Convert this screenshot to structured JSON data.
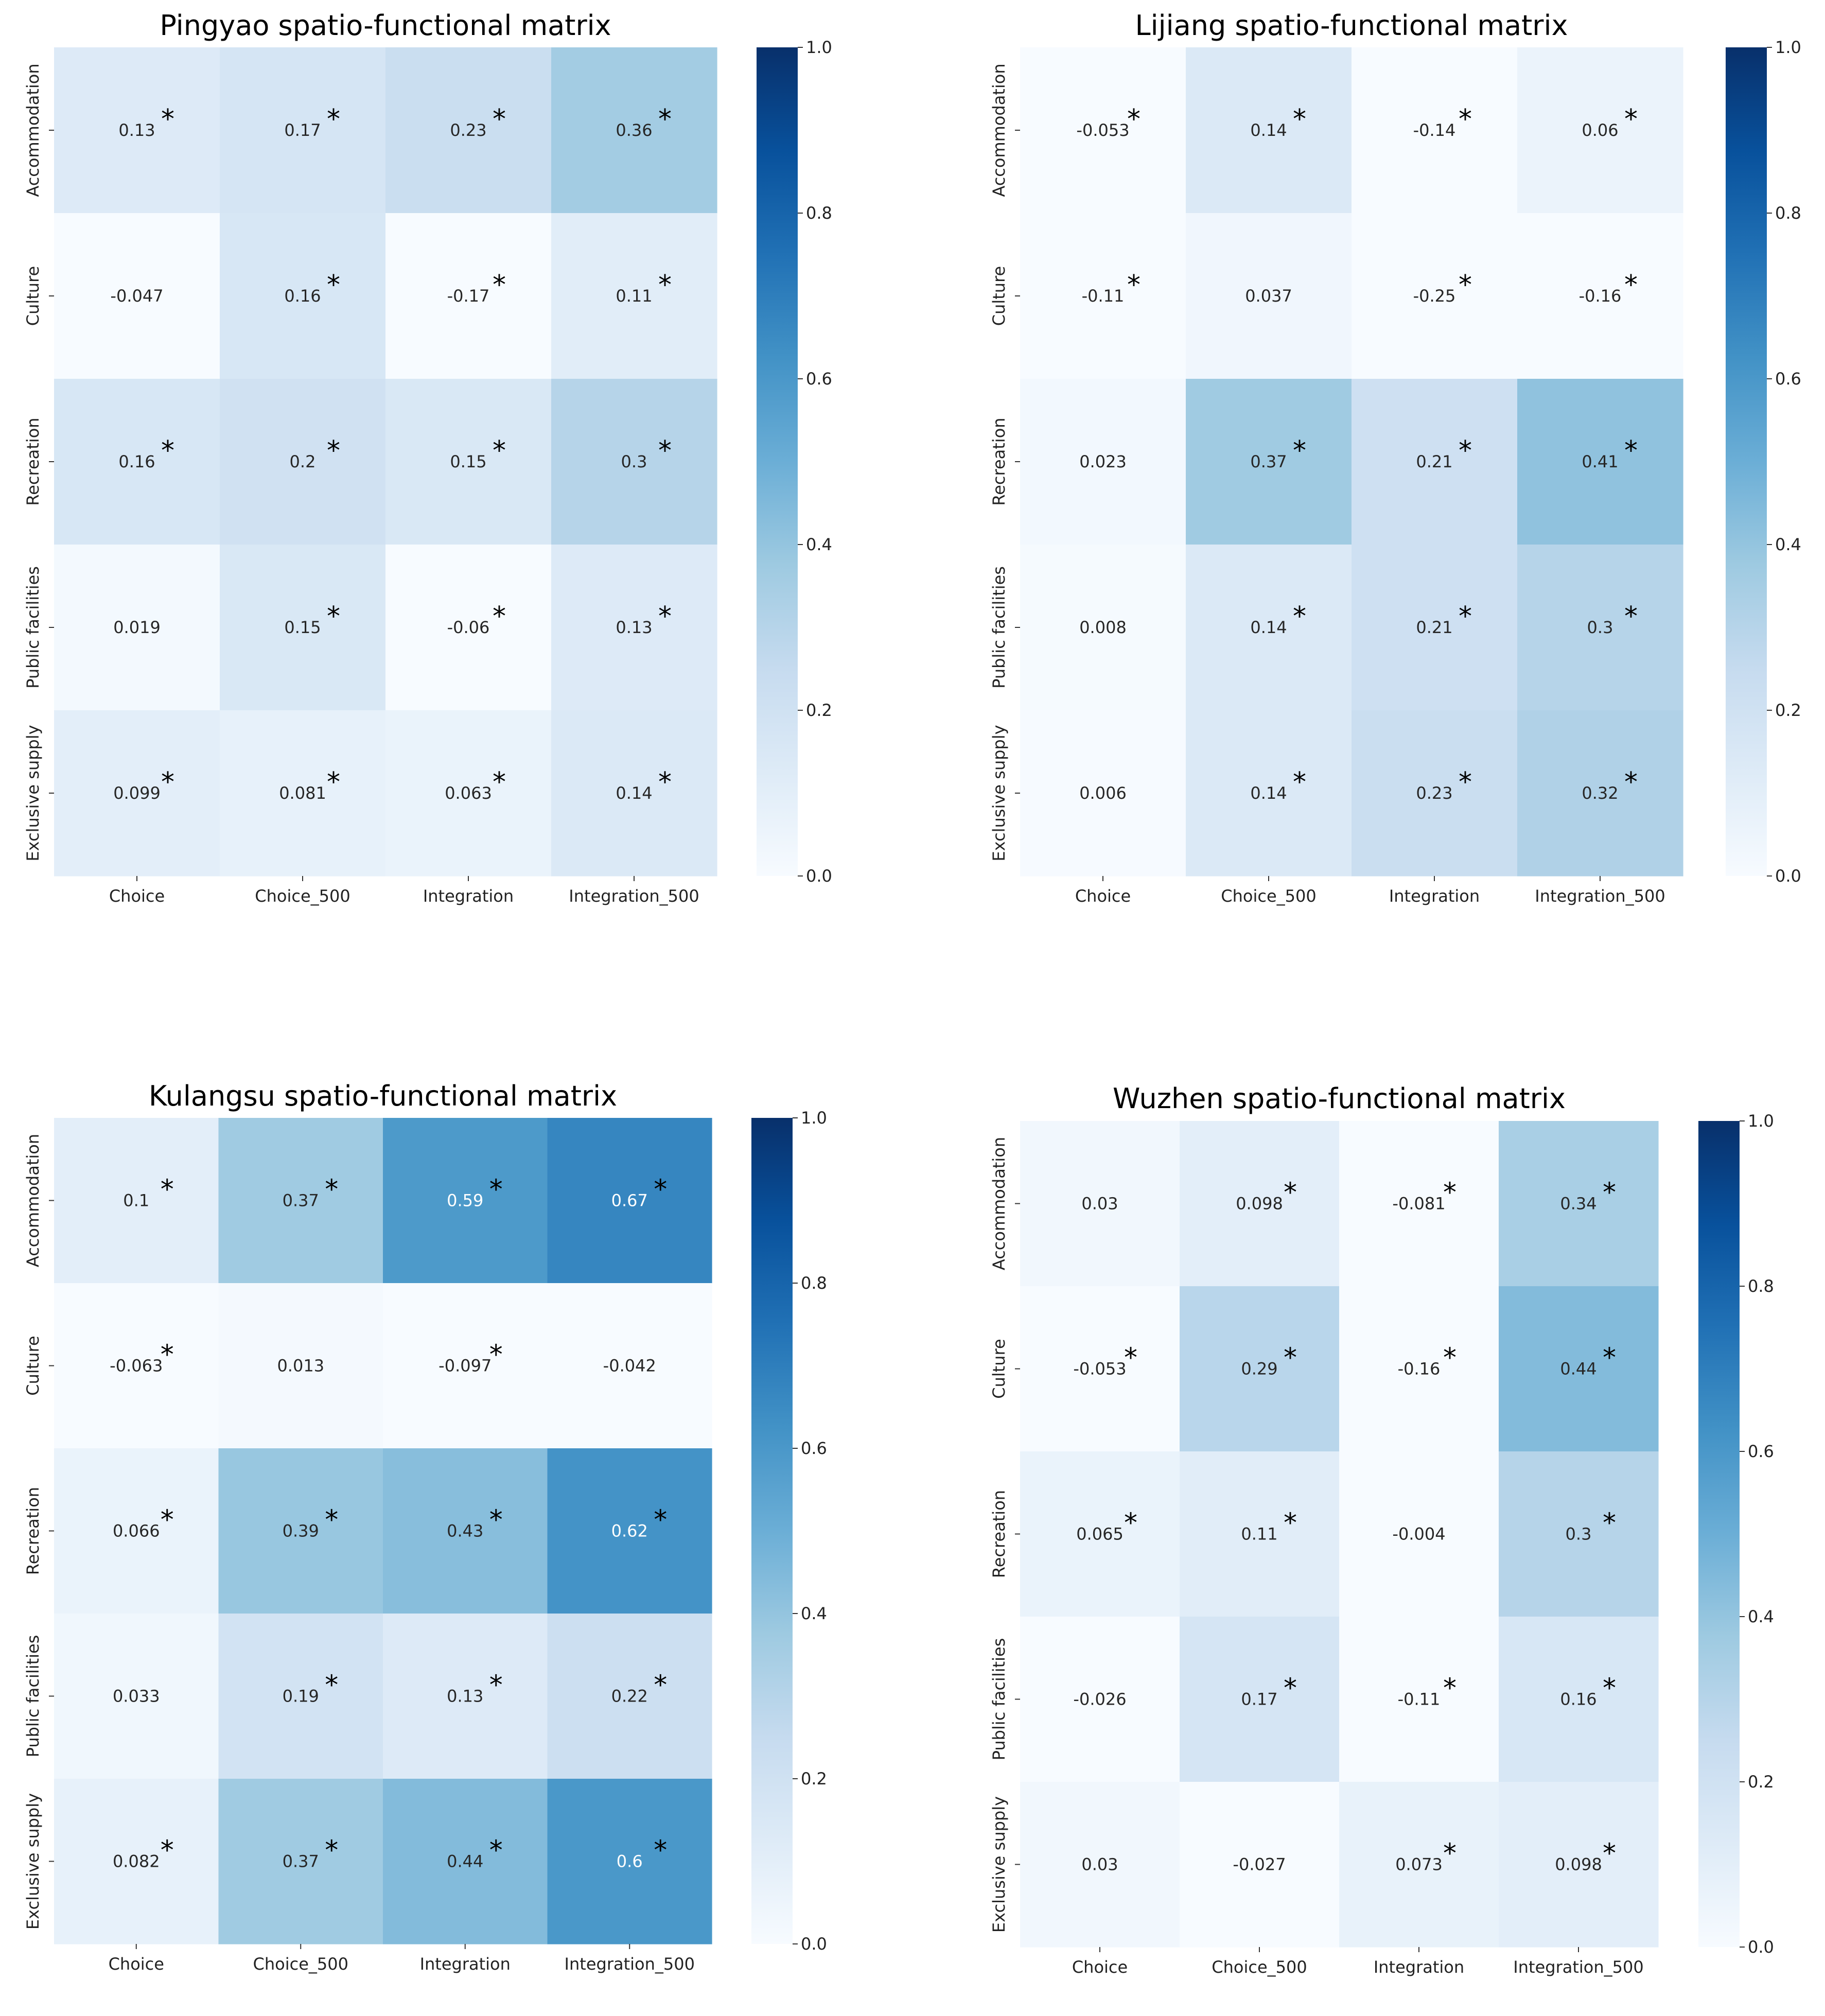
{
  "chart_data": [
    {
      "type": "heatmap",
      "title": "Pingyao spatio-functional matrix",
      "x_categories": [
        "Choice",
        "Choice_500",
        "Integration",
        "Integration_500"
      ],
      "y_categories": [
        "Accommodation",
        "Culture",
        "Recreation",
        "Public facilities",
        "Exclusive supply"
      ],
      "values": [
        [
          0.13,
          0.17,
          0.23,
          0.36
        ],
        [
          -0.047,
          0.16,
          -0.17,
          0.11
        ],
        [
          0.16,
          0.2,
          0.15,
          0.3
        ],
        [
          0.019,
          0.15,
          -0.06,
          0.13
        ],
        [
          0.099,
          0.081,
          0.063,
          0.14
        ]
      ],
      "labels": [
        [
          "0.13",
          "0.17",
          "0.23",
          "0.36"
        ],
        [
          "-0.047",
          "0.16",
          "-0.17",
          "0.11"
        ],
        [
          "0.16",
          "0.2",
          "0.15",
          "0.3"
        ],
        [
          "0.019",
          "0.15",
          "-0.06",
          "0.13"
        ],
        [
          "0.099",
          "0.081",
          "0.063",
          "0.14"
        ]
      ],
      "significant": [
        [
          true,
          true,
          true,
          true
        ],
        [
          false,
          true,
          true,
          true
        ],
        [
          true,
          true,
          true,
          true
        ],
        [
          false,
          true,
          true,
          true
        ],
        [
          true,
          true,
          true,
          true
        ]
      ],
      "marker": "*",
      "colormap": "Blues",
      "vmin": 0.0,
      "vmax": 1.0,
      "colorbar_ticks": [
        "0.0",
        "0.2",
        "0.4",
        "0.6",
        "0.8",
        "1.0"
      ]
    },
    {
      "type": "heatmap",
      "title": "Lijiang spatio-functional matrix",
      "x_categories": [
        "Choice",
        "Choice_500",
        "Integration",
        "Integration_500"
      ],
      "y_categories": [
        "Accommodation",
        "Culture",
        "Recreation",
        "Public facilities",
        "Exclusive supply"
      ],
      "values": [
        [
          -0.053,
          0.14,
          -0.14,
          0.06
        ],
        [
          -0.11,
          0.037,
          -0.25,
          -0.16
        ],
        [
          0.023,
          0.37,
          0.21,
          0.41
        ],
        [
          0.008,
          0.14,
          0.21,
          0.3
        ],
        [
          0.006,
          0.14,
          0.23,
          0.32
        ]
      ],
      "labels": [
        [
          "-0.053",
          "0.14",
          "-0.14",
          "0.06"
        ],
        [
          "-0.11",
          "0.037",
          "-0.25",
          "-0.16"
        ],
        [
          "0.023",
          "0.37",
          "0.21",
          "0.41"
        ],
        [
          "0.008",
          "0.14",
          "0.21",
          "0.3"
        ],
        [
          "0.006",
          "0.14",
          "0.23",
          "0.32"
        ]
      ],
      "significant": [
        [
          true,
          true,
          true,
          true
        ],
        [
          true,
          false,
          true,
          true
        ],
        [
          false,
          true,
          true,
          true
        ],
        [
          false,
          true,
          true,
          true
        ],
        [
          false,
          true,
          true,
          true
        ]
      ],
      "marker": "*",
      "colormap": "Blues",
      "vmin": 0.0,
      "vmax": 1.0,
      "colorbar_ticks": [
        "0.0",
        "0.2",
        "0.4",
        "0.6",
        "0.8",
        "1.0"
      ]
    },
    {
      "type": "heatmap",
      "title": "Kulangsu spatio-functional matrix",
      "x_categories": [
        "Choice",
        "Choice_500",
        "Integration",
        "Integration_500"
      ],
      "y_categories": [
        "Accommodation",
        "Culture",
        "Recreation",
        "Public facilities",
        "Exclusive supply"
      ],
      "values": [
        [
          0.1,
          0.37,
          0.59,
          0.67
        ],
        [
          -0.063,
          0.013,
          -0.097,
          -0.042
        ],
        [
          0.066,
          0.39,
          0.43,
          0.62
        ],
        [
          0.033,
          0.19,
          0.13,
          0.22
        ],
        [
          0.082,
          0.37,
          0.44,
          0.6
        ]
      ],
      "labels": [
        [
          "0.1",
          "0.37",
          "0.59",
          "0.67"
        ],
        [
          "-0.063",
          "0.013",
          "-0.097",
          "-0.042"
        ],
        [
          "0.066",
          "0.39",
          "0.43",
          "0.62"
        ],
        [
          "0.033",
          "0.19",
          "0.13",
          "0.22"
        ],
        [
          "0.082",
          "0.37",
          "0.44",
          "0.6"
        ]
      ],
      "significant": [
        [
          true,
          true,
          true,
          true
        ],
        [
          true,
          false,
          true,
          false
        ],
        [
          true,
          true,
          true,
          true
        ],
        [
          false,
          true,
          true,
          true
        ],
        [
          true,
          true,
          true,
          true
        ]
      ],
      "marker": "*",
      "colormap": "Blues",
      "vmin": 0.0,
      "vmax": 1.0,
      "colorbar_ticks": [
        "0.0",
        "0.2",
        "0.4",
        "0.6",
        "0.8",
        "1.0"
      ]
    },
    {
      "type": "heatmap",
      "title": "Wuzhen spatio-functional matrix",
      "x_categories": [
        "Choice",
        "Choice_500",
        "Integration",
        "Integration_500"
      ],
      "y_categories": [
        "Accommodation",
        "Culture",
        "Recreation",
        "Public facilities",
        "Exclusive supply"
      ],
      "values": [
        [
          0.03,
          0.098,
          -0.081,
          0.34
        ],
        [
          -0.053,
          0.29,
          -0.16,
          0.44
        ],
        [
          0.065,
          0.11,
          -0.004,
          0.3
        ],
        [
          -0.026,
          0.17,
          -0.11,
          0.16
        ],
        [
          0.03,
          -0.027,
          0.073,
          0.098
        ]
      ],
      "labels": [
        [
          "0.03",
          "0.098",
          "-0.081",
          "0.34"
        ],
        [
          "-0.053",
          "0.29",
          "-0.16",
          "0.44"
        ],
        [
          "0.065",
          "0.11",
          "-0.004",
          "0.3"
        ],
        [
          "-0.026",
          "0.17",
          "-0.11",
          "0.16"
        ],
        [
          "0.03",
          "-0.027",
          "0.073",
          "0.098"
        ]
      ],
      "significant": [
        [
          false,
          true,
          true,
          true
        ],
        [
          true,
          true,
          true,
          true
        ],
        [
          true,
          true,
          false,
          true
        ],
        [
          false,
          true,
          true,
          true
        ],
        [
          false,
          false,
          true,
          true
        ]
      ],
      "marker": "*",
      "colormap": "Blues",
      "vmin": 0.0,
      "vmax": 1.0,
      "colorbar_ticks": [
        "0.0",
        "0.2",
        "0.4",
        "0.6",
        "0.8",
        "1.0"
      ]
    }
  ]
}
